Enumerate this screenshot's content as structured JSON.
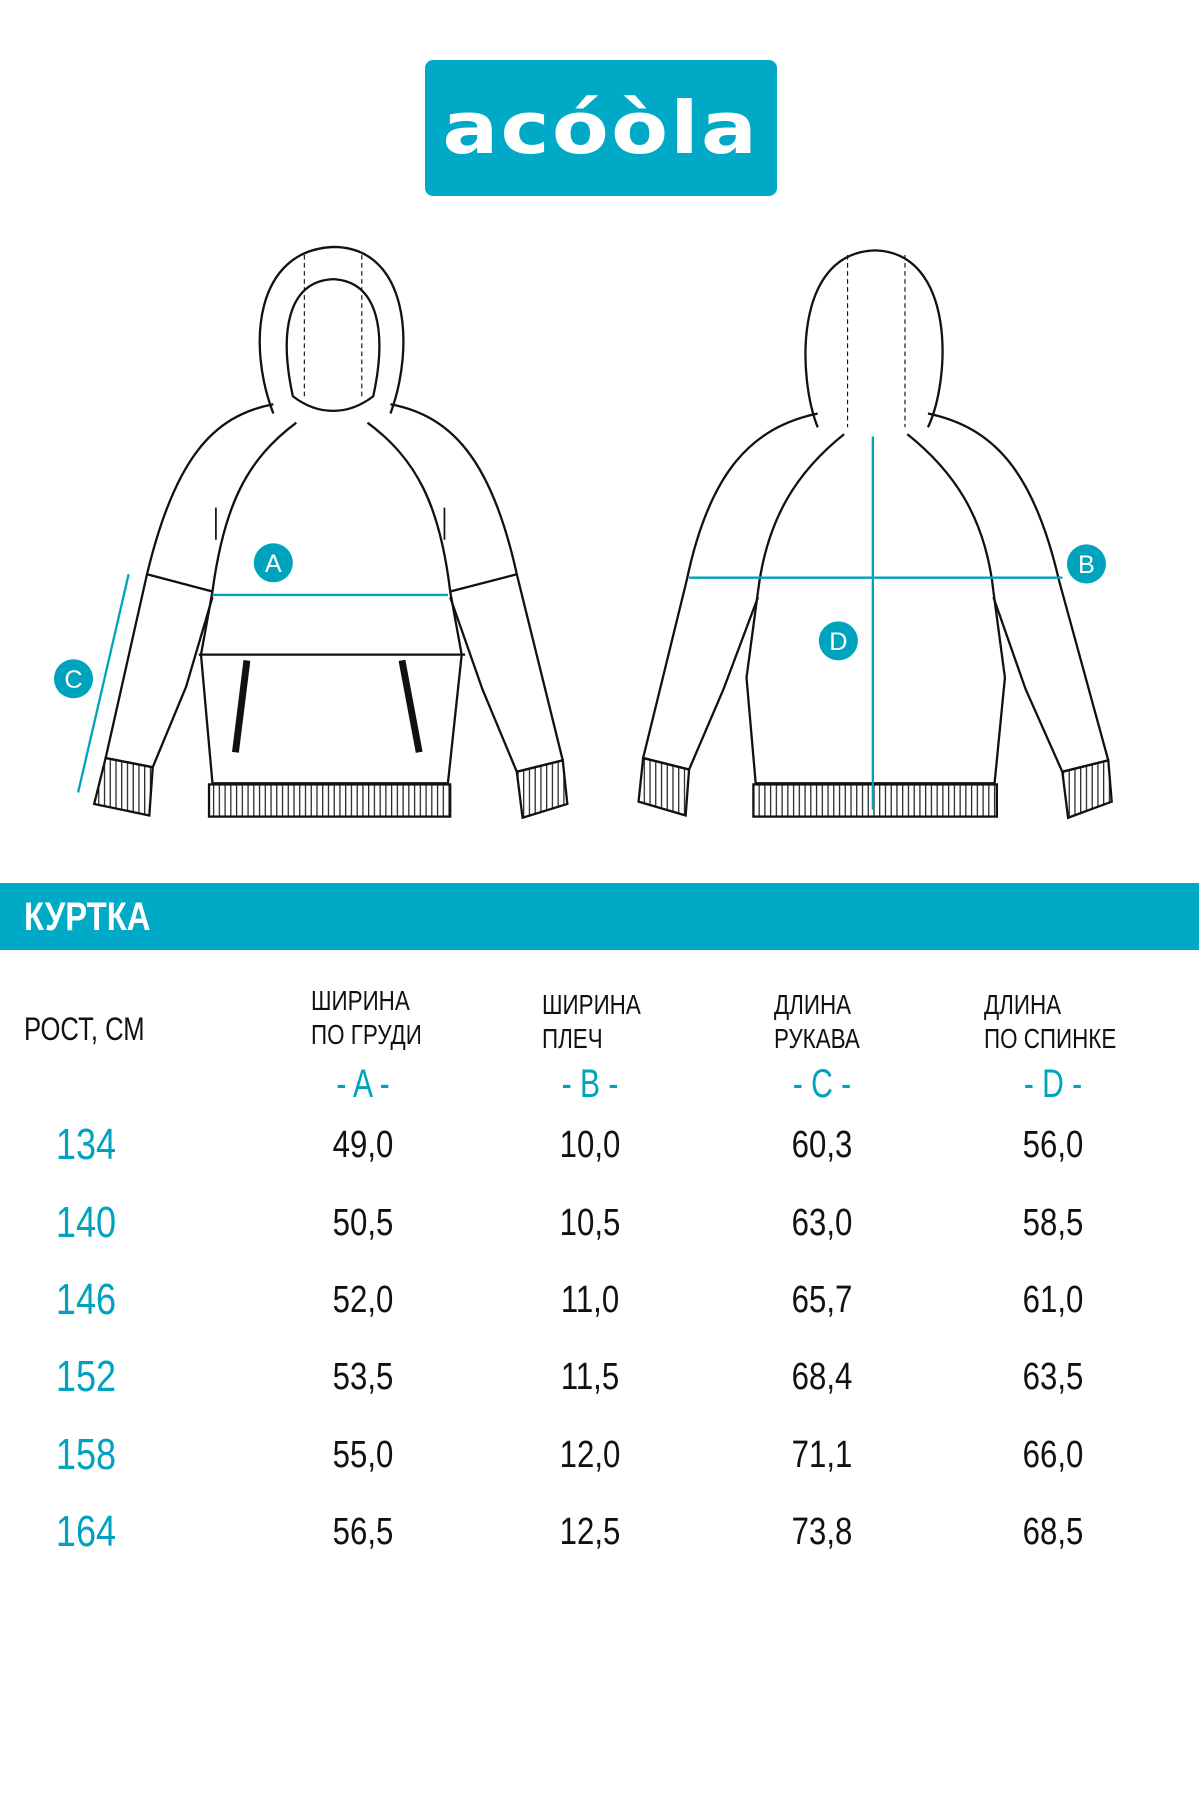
{
  "logo": {
    "text": "acóòla"
  },
  "brand_color": "#00aac6",
  "diagram": {
    "labels": {
      "a": "A",
      "b": "B",
      "c": "C",
      "d": "D"
    }
  },
  "section": {
    "title": "КУРТКА"
  },
  "table": {
    "height_header": "РОСТ, СМ",
    "columns": [
      {
        "title": "ШИРИНА\nПО ГРУДИ",
        "letter": "- A -"
      },
      {
        "title": "ШИРИНА\nПЛЕЧ",
        "letter": "- B -"
      },
      {
        "title": "ДЛИНА\nРУКАВА",
        "letter": "- C -"
      },
      {
        "title": "ДЛИНА\nПО СПИНКЕ",
        "letter": "- D -"
      }
    ],
    "rows": [
      {
        "height": "134",
        "values": [
          "49,0",
          "10,0",
          "60,3",
          "56,0"
        ]
      },
      {
        "height": "140",
        "values": [
          "50,5",
          "10,5",
          "63,0",
          "58,5"
        ]
      },
      {
        "height": "146",
        "values": [
          "52,0",
          "11,0",
          "65,7",
          "61,0"
        ]
      },
      {
        "height": "152",
        "values": [
          "53,5",
          "11,5",
          "68,4",
          "63,5"
        ]
      },
      {
        "height": "158",
        "values": [
          "55,0",
          "12,0",
          "71,1",
          "66,0"
        ]
      },
      {
        "height": "164",
        "values": [
          "56,5",
          "12,5",
          "73,8",
          "68,5"
        ]
      }
    ]
  }
}
